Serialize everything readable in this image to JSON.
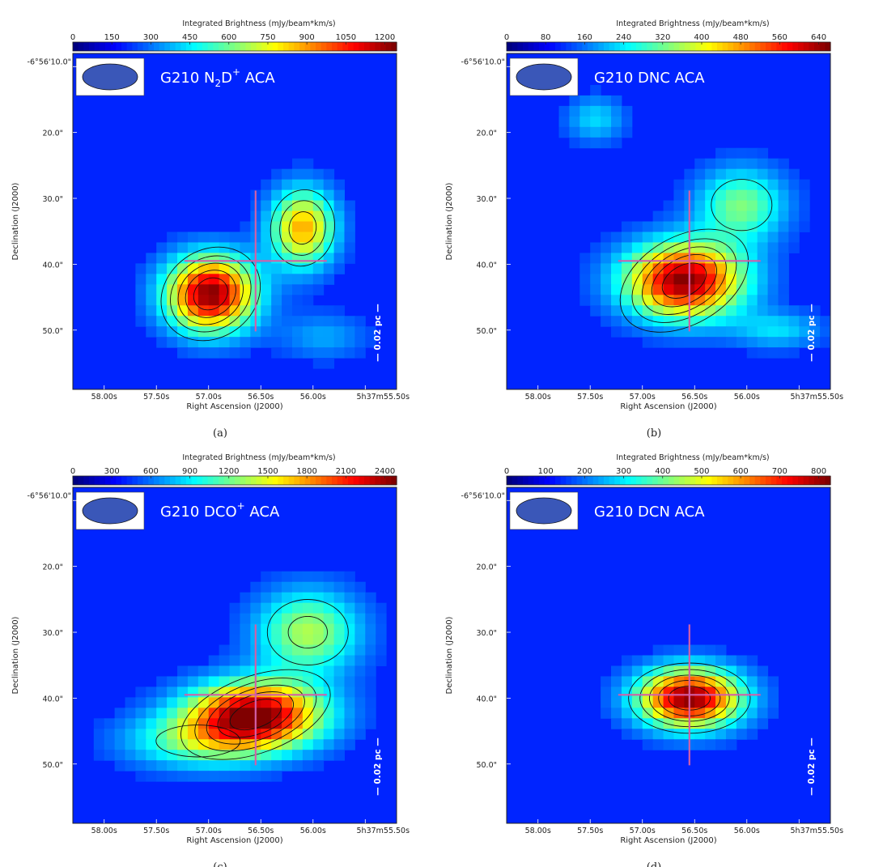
{
  "figure": {
    "panels": [
      {
        "id": "a",
        "caption": "(a)",
        "label_main": "G210 N",
        "label_sub": "2",
        "label_mid": "D",
        "label_sup": "+",
        "label_tail": " ACA",
        "colorbar_title": "Integrated Brightness (mJy/beam*km/s)",
        "colorbar_ticks": [
          "0",
          "150",
          "300",
          "450",
          "600",
          "750",
          "900",
          "1050",
          "1200"
        ],
        "scalebar_label": "0.02 pc",
        "xlabel": "Right Ascension (J2000)",
        "ylabel": "Declination (J2000)",
        "x_ticks": [
          "58.00s",
          "57.50s",
          "57.00s",
          "56.50s",
          "56.00s",
          "5h37m55.50s"
        ],
        "y_ticks": [
          "-6°56'10.0\"",
          "20.0\"",
          "30.0\"",
          "40.0\"",
          "50.0\""
        ]
      },
      {
        "id": "b",
        "caption": "(b)",
        "label_main": "G210 DNC ACA",
        "label_sub": "",
        "label_mid": "",
        "label_sup": "",
        "label_tail": "",
        "colorbar_title": "Integrated Brightness (mJy/beam*km/s)",
        "colorbar_ticks": [
          "0",
          "80",
          "160",
          "240",
          "320",
          "400",
          "480",
          "560",
          "640"
        ],
        "scalebar_label": "0.02 pc",
        "xlabel": "Right Ascension (J2000)",
        "ylabel": "Declination (J2000)",
        "x_ticks": [
          "58.00s",
          "57.50s",
          "57.00s",
          "56.50s",
          "56.00s",
          "5h37m55.50s"
        ],
        "y_ticks": [
          "-6°56'10.0\"",
          "20.0\"",
          "30.0\"",
          "40.0\"",
          "50.0\""
        ]
      },
      {
        "id": "c",
        "caption": "(c)",
        "label_main": "G210 DCO",
        "label_sub": "",
        "label_mid": "",
        "label_sup": "+",
        "label_tail": " ACA",
        "colorbar_title": "Integrated Brightness (mJy/beam*km/s)",
        "colorbar_ticks": [
          "0",
          "300",
          "600",
          "900",
          "1200",
          "1500",
          "1800",
          "2100",
          "2400"
        ],
        "scalebar_label": "0.02 pc",
        "xlabel": "Right Ascension (J2000)",
        "ylabel": "Declination (J2000)",
        "x_ticks": [
          "58.00s",
          "57.50s",
          "57.00s",
          "56.50s",
          "56.00s",
          "5h37m55.50s"
        ],
        "y_ticks": [
          "-6°56'10.0\"",
          "20.0\"",
          "30.0\"",
          "40.0\"",
          "50.0\""
        ]
      },
      {
        "id": "d",
        "caption": "(d)",
        "label_main": "G210 DCN ACA",
        "label_sub": "",
        "label_mid": "",
        "label_sup": "",
        "label_tail": "",
        "colorbar_title": "Integrated Brightness (mJy/beam*km/s)",
        "colorbar_ticks": [
          "0",
          "100",
          "200",
          "300",
          "400",
          "500",
          "600",
          "700",
          "800"
        ],
        "scalebar_label": "0.02 pc",
        "xlabel": "Right Ascension (J2000)",
        "ylabel": "Declination (J2000)",
        "x_ticks": [
          "58.00s",
          "57.50s",
          "57.00s",
          "56.50s",
          "56.00s",
          "5h37m55.50s"
        ],
        "y_ticks": [
          "-6°56'10.0\"",
          "20.0\"",
          "30.0\"",
          "40.0\"",
          "50.0\""
        ]
      }
    ]
  },
  "chart_data": [
    {
      "type": "heatmap",
      "panel": "a",
      "colormap": "jet",
      "value_range": [
        0,
        1300
      ],
      "x_axis": "Right Ascension (J2000)",
      "y_axis": "Declination (J2000)",
      "x_range": [
        "5h37m58.30s",
        "5h37m55.20s"
      ],
      "y_range": [
        "-6°56'08\"",
        "-6°56'59\""
      ],
      "sources": [
        {
          "ra_s": 56.98,
          "dec_arcsec": 44.5,
          "peak": 1300,
          "sx": 0.3,
          "sy": 4.0,
          "tilt_deg": -35
        },
        {
          "ra_s": 56.1,
          "dec_arcsec": 34.5,
          "peak": 850,
          "sx": 0.22,
          "sy": 4.2,
          "tilt_deg": 10
        },
        {
          "ra_s": 55.9,
          "dec_arcsec": 51.0,
          "peak": 200,
          "sx": 0.3,
          "sy": 2.5,
          "tilt_deg": 0
        }
      ],
      "cross_center": {
        "ra_s": 56.55,
        "dec_arcsec": 39.5
      },
      "contours": true,
      "grid": false
    },
    {
      "type": "heatmap",
      "panel": "b",
      "colormap": "jet",
      "value_range": [
        0,
        700
      ],
      "x_axis": "Right Ascension (J2000)",
      "y_axis": "Declination (J2000)",
      "x_range": [
        "5h37m58.30s",
        "5h37m55.20s"
      ],
      "y_range": [
        "-6°56'08\"",
        "-6°56'59\""
      ],
      "sources": [
        {
          "ra_s": 56.6,
          "dec_arcsec": 42.5,
          "peak": 700,
          "sx": 0.4,
          "sy": 4.0,
          "tilt_deg": -30
        },
        {
          "ra_s": 56.05,
          "dec_arcsec": 31.0,
          "peak": 280,
          "sx": 0.3,
          "sy": 4.0,
          "tilt_deg": 0
        },
        {
          "ra_s": 57.45,
          "dec_arcsec": 18.0,
          "peak": 150,
          "sx": 0.2,
          "sy": 2.5,
          "tilt_deg": 0
        },
        {
          "ra_s": 55.7,
          "dec_arcsec": 50.0,
          "peak": 150,
          "sx": 0.3,
          "sy": 2.0,
          "tilt_deg": 0
        }
      ],
      "cross_center": {
        "ra_s": 56.55,
        "dec_arcsec": 39.5
      },
      "contours": true,
      "grid": false
    },
    {
      "type": "heatmap",
      "panel": "c",
      "colormap": "jet",
      "value_range": [
        0,
        2600
      ],
      "x_axis": "Right Ascension (J2000)",
      "y_axis": "Declination (J2000)",
      "x_range": [
        "5h37m58.30s",
        "5h37m55.20s"
      ],
      "y_range": [
        "-6°56'08\"",
        "-6°56'59\""
      ],
      "sources": [
        {
          "ra_s": 56.55,
          "dec_arcsec": 42.5,
          "peak": 2600,
          "sx": 0.45,
          "sy": 3.5,
          "tilt_deg": -20
        },
        {
          "ra_s": 56.05,
          "dec_arcsec": 30.0,
          "peak": 1200,
          "sx": 0.35,
          "sy": 4.5,
          "tilt_deg": 0
        },
        {
          "ra_s": 57.1,
          "dec_arcsec": 46.5,
          "peak": 900,
          "sx": 0.5,
          "sy": 3.0,
          "tilt_deg": 0
        }
      ],
      "cross_center": {
        "ra_s": 56.55,
        "dec_arcsec": 39.5
      },
      "contours": true,
      "grid": false
    },
    {
      "type": "heatmap",
      "panel": "d",
      "colormap": "jet",
      "value_range": [
        0,
        850
      ],
      "x_axis": "Right Ascension (J2000)",
      "y_axis": "Declination (J2000)",
      "x_range": [
        "5h37m58.30s",
        "5h37m55.20s"
      ],
      "y_range": [
        "-6°56'08\"",
        "-6°56'59\""
      ],
      "sources": [
        {
          "ra_s": 56.55,
          "dec_arcsec": 40.0,
          "peak": 850,
          "sx": 0.35,
          "sy": 3.2,
          "tilt_deg": 0
        }
      ],
      "cross_center": {
        "ra_s": 56.55,
        "dec_arcsec": 39.5
      },
      "contours": true,
      "grid": false
    }
  ]
}
